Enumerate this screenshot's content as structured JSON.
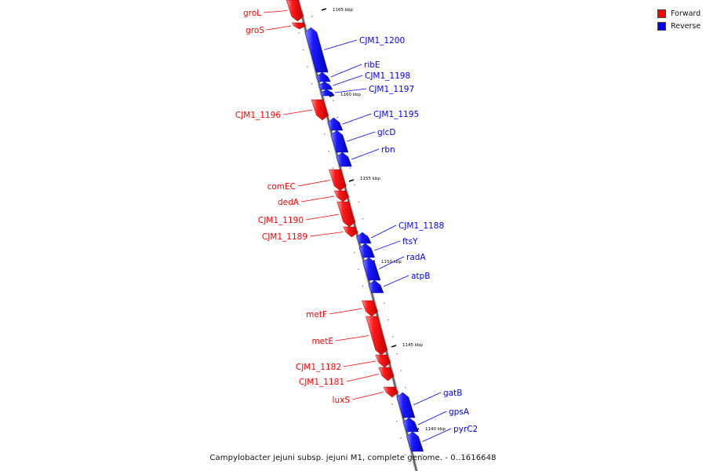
{
  "colors": {
    "forward": "#ff0000",
    "reverse": "#0000ff"
  },
  "legend": {
    "forward_label": "Forward",
    "reverse_label": "Reverse"
  },
  "caption": "Campylobacter jejuni subsp. jejuni M1, complete genome. - 0..1616648",
  "ticks": [
    "1165 kbp",
    "1160 kbp",
    "1155 kbp",
    "1150 kbp",
    "1145 kbp",
    "1140 kbp"
  ],
  "genes": [
    {
      "name": "groL",
      "strand": "forward"
    },
    {
      "name": "groS",
      "strand": "forward"
    },
    {
      "name": "CJM1_1200",
      "strand": "reverse"
    },
    {
      "name": "ribE",
      "strand": "reverse"
    },
    {
      "name": "CJM1_1198",
      "strand": "reverse"
    },
    {
      "name": "CJM1_1197",
      "strand": "reverse"
    },
    {
      "name": "CJM1_1196",
      "strand": "forward"
    },
    {
      "name": "CJM1_1195",
      "strand": "reverse"
    },
    {
      "name": "glcD",
      "strand": "reverse"
    },
    {
      "name": "rbn",
      "strand": "reverse"
    },
    {
      "name": "comEC",
      "strand": "forward"
    },
    {
      "name": "dedA",
      "strand": "forward"
    },
    {
      "name": "CJM1_1190",
      "strand": "forward"
    },
    {
      "name": "CJM1_1189",
      "strand": "forward"
    },
    {
      "name": "CJM1_1188",
      "strand": "reverse"
    },
    {
      "name": "ftsY",
      "strand": "reverse"
    },
    {
      "name": "radA",
      "strand": "reverse"
    },
    {
      "name": "atpB",
      "strand": "reverse"
    },
    {
      "name": "metF",
      "strand": "forward"
    },
    {
      "name": "metE",
      "strand": "forward"
    },
    {
      "name": "CJM1_1182",
      "strand": "forward"
    },
    {
      "name": "CJM1_1181",
      "strand": "forward"
    },
    {
      "name": "luxS",
      "strand": "forward"
    },
    {
      "name": "gatB",
      "strand": "reverse"
    },
    {
      "name": "gpsA",
      "strand": "reverse"
    },
    {
      "name": "pyrC2",
      "strand": "reverse"
    }
  ]
}
